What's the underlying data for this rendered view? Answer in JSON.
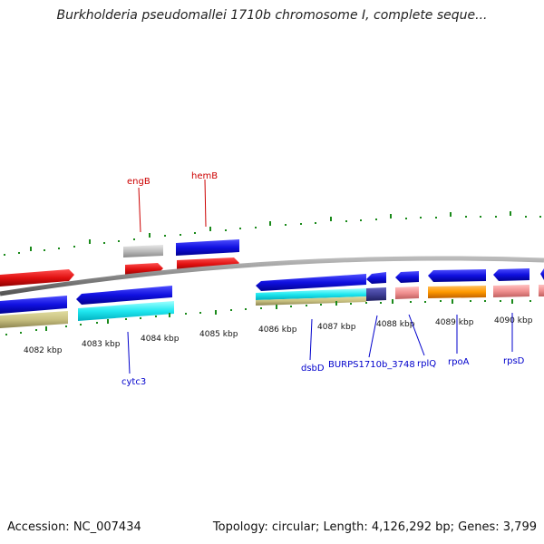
{
  "title": "Burkholderia pseudomallei 1710b chromosome I, complete seque...",
  "footer": {
    "accession": "Accession: NC_007434",
    "summary": "Topology: circular; Length: 4,126,292 bp; Genes: 3,799"
  },
  "tick_labels": [
    "4082 kbp",
    "4083 kbp",
    "4084 kbp",
    "4085 kbp",
    "4086 kbp",
    "4087 kbp",
    "4088 kbp",
    "4089 kbp",
    "4090 kbp"
  ],
  "outer_labels": [
    "engB",
    "hemB"
  ],
  "inner_labels": [
    "cytc3",
    "dsbD",
    "BURPS1710b_3748",
    "rplQ",
    "rpoA",
    "rpsD"
  ],
  "colors": {
    "outer_label": "#cc0000",
    "inner_label": "#0000cc",
    "gene_blue": "#1010e0",
    "gene_red": "#e01010",
    "tick": "#1a8a1a",
    "backbone": "#888888"
  }
}
